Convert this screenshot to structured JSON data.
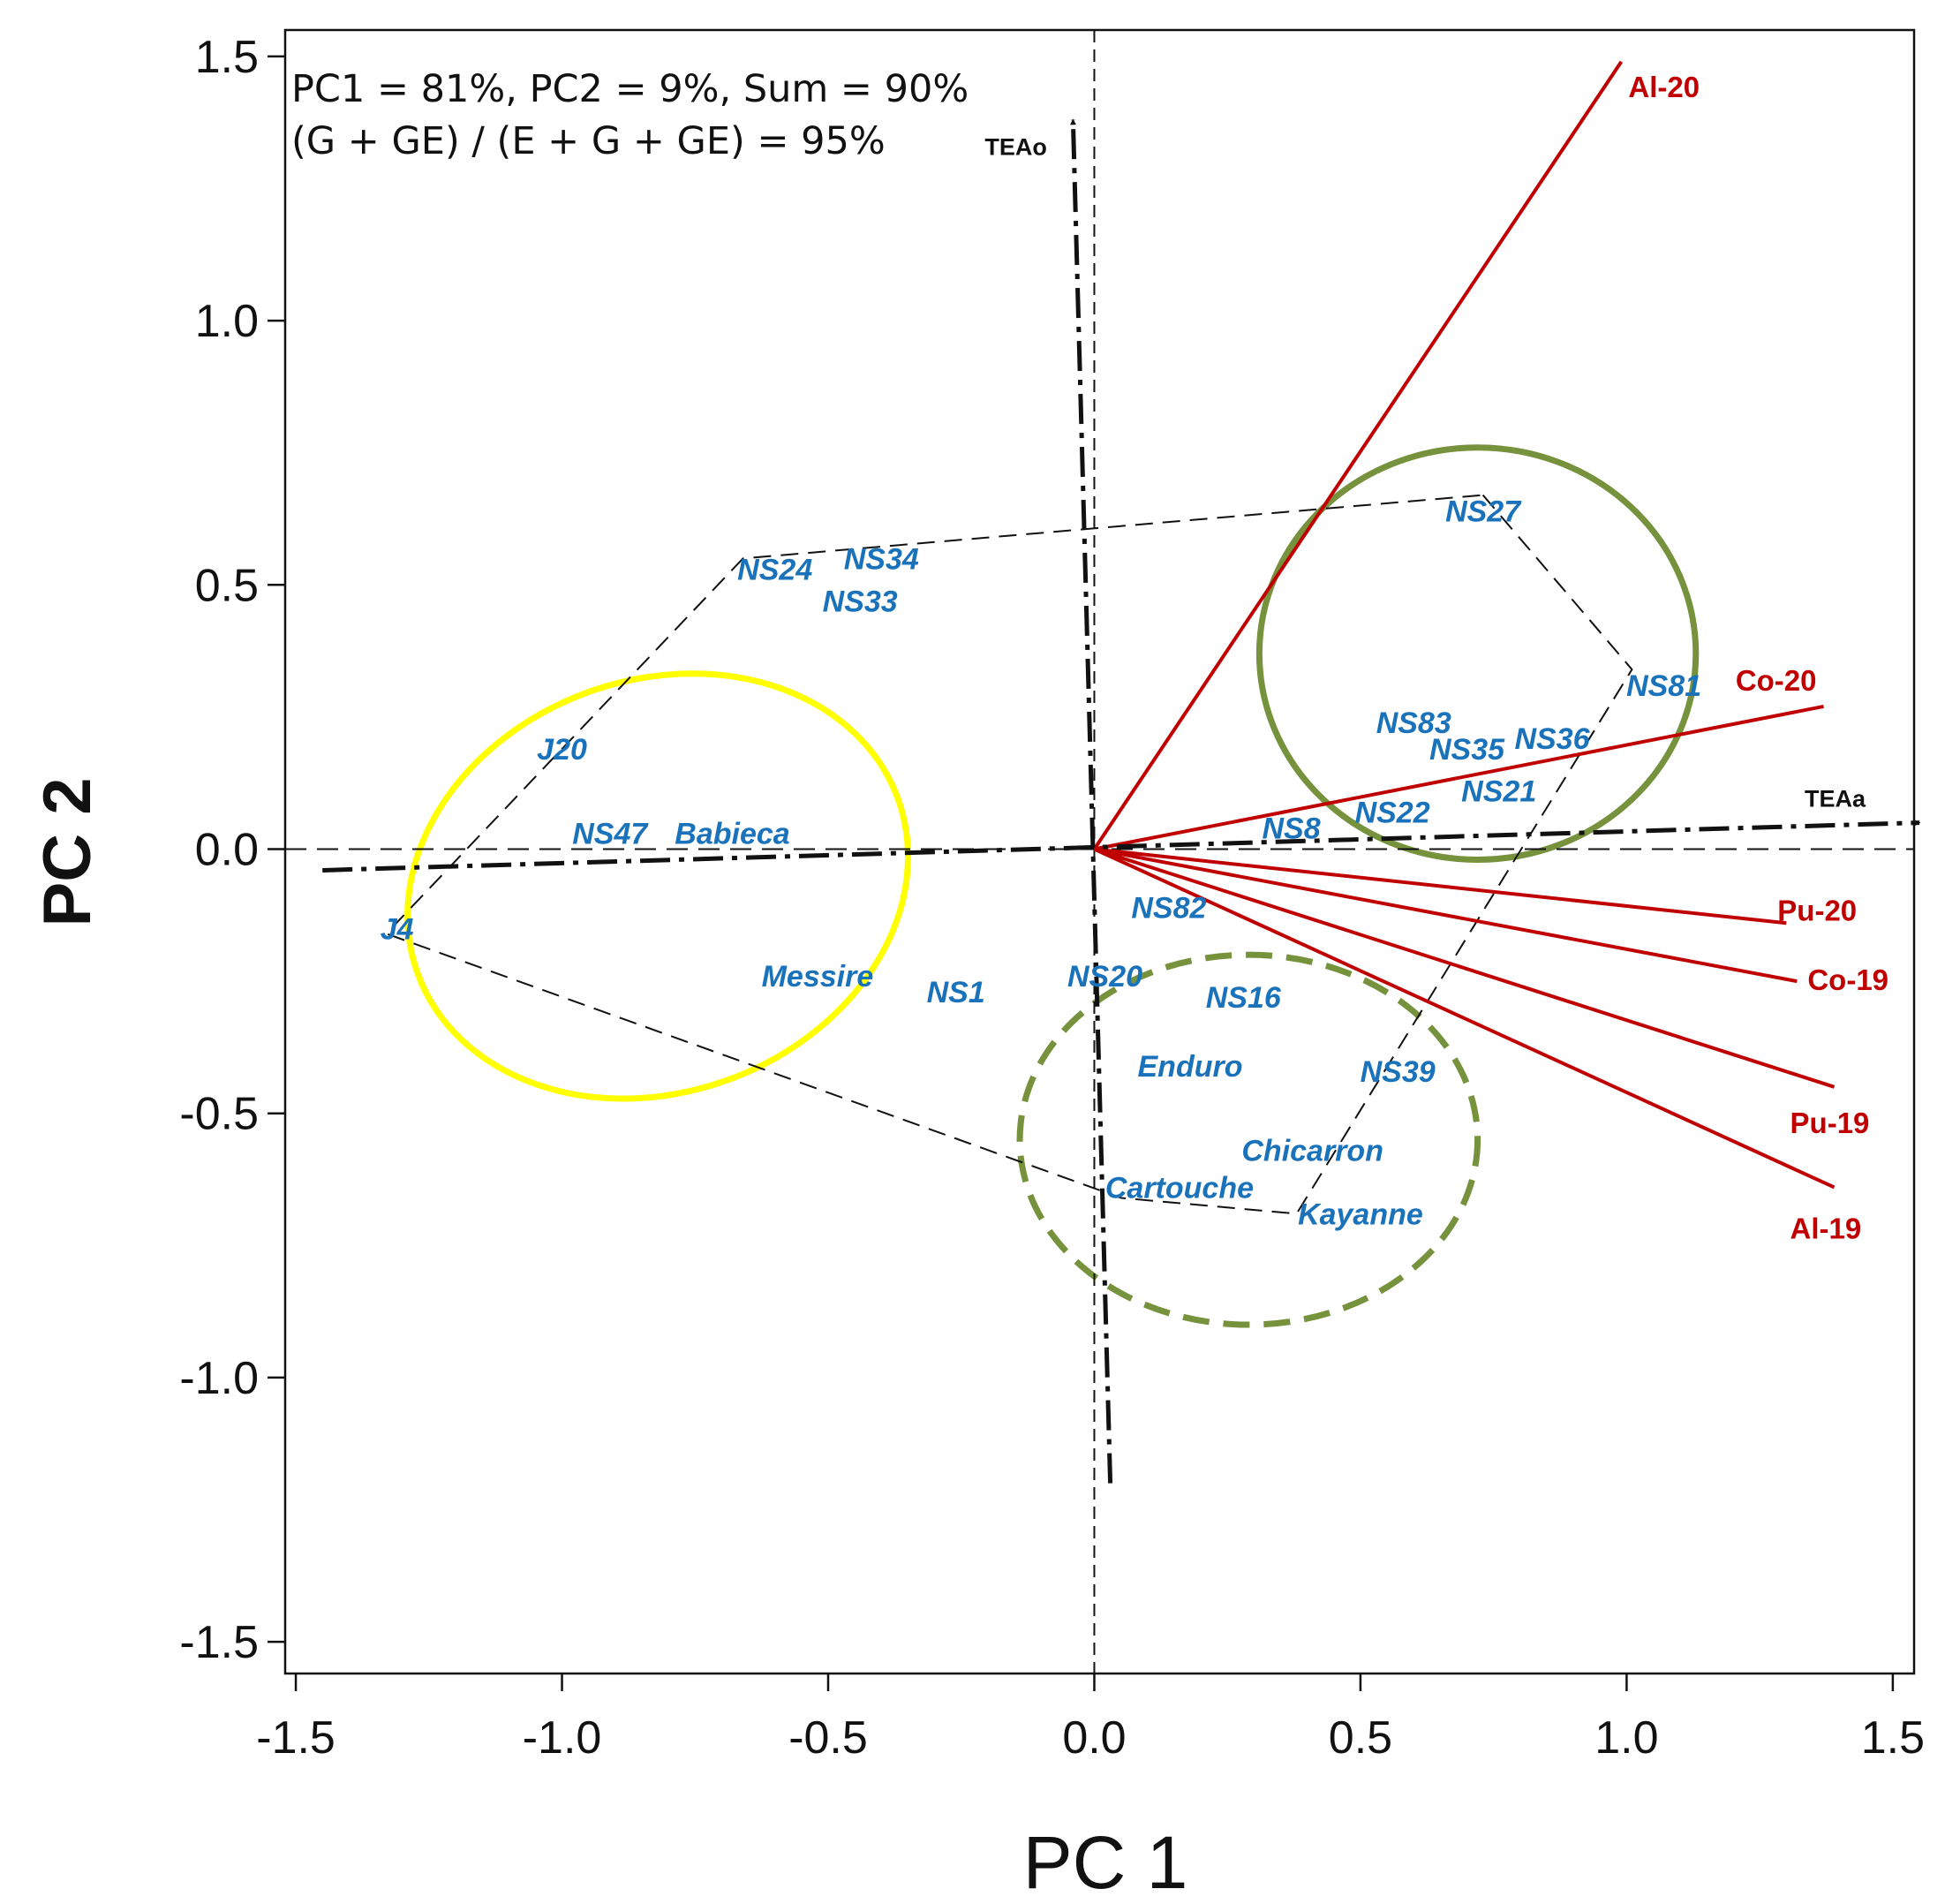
{
  "chart_data": {
    "type": "scatter",
    "subtype": "GGE biplot",
    "xlabel": "PC 1",
    "ylabel": "PC 2",
    "xlim": [
      -1.52,
      1.54
    ],
    "ylim": [
      -1.56,
      1.55
    ],
    "x_ticks": [
      -1.5,
      -1.0,
      -0.5,
      0.0,
      0.5,
      1.0,
      1.5
    ],
    "x_tick_labels": [
      "-1.5",
      "-1.0",
      "-0.5",
      "0.0",
      "0.5",
      "1.0",
      "1.5"
    ],
    "y_ticks": [
      1.5,
      1.0,
      0.5,
      0.0,
      -0.5,
      -1.0,
      -1.5
    ],
    "y_tick_labels": [
      "1.5",
      "1.0",
      "0.5",
      "0.0",
      "-0.5",
      "-1.0",
      "-1.5"
    ],
    "annotations": [
      "PC1 =  81%, PC2 = 9%, Sum = 90%",
      "(G + GE) / (E + G + GE) = 95%"
    ],
    "colors": {
      "genotype": "#1a72bb",
      "environment": "#c00000",
      "axes": "#111111",
      "yellow_ellipse": "#ffff00",
      "green_circle": "#76923c"
    },
    "genotypes": [
      {
        "name": "NS27",
        "x": 0.73,
        "y": 0.64
      },
      {
        "name": "NS24",
        "x": -0.6,
        "y": 0.53
      },
      {
        "name": "NS34",
        "x": -0.4,
        "y": 0.55
      },
      {
        "name": "NS33",
        "x": -0.44,
        "y": 0.47
      },
      {
        "name": "NS81",
        "x": 1.07,
        "y": 0.31
      },
      {
        "name": "NS83",
        "x": 0.6,
        "y": 0.24
      },
      {
        "name": "NS36",
        "x": 0.86,
        "y": 0.21
      },
      {
        "name": "NS35",
        "x": 0.7,
        "y": 0.19
      },
      {
        "name": "J20",
        "x": -1.0,
        "y": 0.19
      },
      {
        "name": "NS21",
        "x": 0.76,
        "y": 0.11
      },
      {
        "name": "NS22",
        "x": 0.56,
        "y": 0.07
      },
      {
        "name": "NS8",
        "x": 0.37,
        "y": 0.04
      },
      {
        "name": "NS47",
        "x": -0.91,
        "y": 0.03
      },
      {
        "name": "Babieca",
        "x": -0.68,
        "y": 0.03
      },
      {
        "name": "NS82",
        "x": 0.14,
        "y": -0.11
      },
      {
        "name": "J4",
        "x": -1.31,
        "y": -0.15
      },
      {
        "name": "Messire",
        "x": -0.52,
        "y": -0.24
      },
      {
        "name": "NS20",
        "x": 0.02,
        "y": -0.24
      },
      {
        "name": "NS1",
        "x": -0.26,
        "y": -0.27
      },
      {
        "name": "NS16",
        "x": 0.28,
        "y": -0.28
      },
      {
        "name": "Enduro",
        "x": 0.18,
        "y": -0.41
      },
      {
        "name": "NS39",
        "x": 0.57,
        "y": -0.42
      },
      {
        "name": "Chicarron",
        "x": 0.41,
        "y": -0.57
      },
      {
        "name": "Cartouche",
        "x": 0.16,
        "y": -0.64
      },
      {
        "name": "Kayanne",
        "x": 0.5,
        "y": -0.69
      }
    ],
    "environments": [
      {
        "name": "Al-20",
        "x": 0.99,
        "y": 1.49
      },
      {
        "name": "Co-20",
        "x": 1.37,
        "y": 0.27
      },
      {
        "name": "Pu-20",
        "x": 1.3,
        "y": -0.14
      },
      {
        "name": "Co-19",
        "x": 1.32,
        "y": -0.25
      },
      {
        "name": "Pu-19",
        "x": 1.39,
        "y": -0.45
      },
      {
        "name": "Al-19",
        "x": 1.39,
        "y": -0.64
      }
    ],
    "trait_axes": [
      {
        "name": "TEAa",
        "from": [
          -1.45,
          -0.04
        ],
        "to": [
          1.55,
          0.05
        ]
      },
      {
        "name": "TEAo",
        "from": [
          0.03,
          -1.2
        ],
        "to": [
          -0.04,
          1.38
        ]
      }
    ],
    "polygon_vertices": [
      [
        0.73,
        0.67
      ],
      [
        1.01,
        0.34
      ],
      [
        0.38,
        -0.69
      ],
      [
        0.05,
        -0.66
      ],
      [
        -1.33,
        -0.16
      ],
      [
        -0.66,
        0.55
      ]
    ],
    "ellipses": [
      {
        "name": "yellow",
        "center": [
          -0.82,
          -0.07
        ],
        "rx": 0.48,
        "ry": 0.39,
        "rotation_deg": -20,
        "style": "solid"
      },
      {
        "name": "green-solid",
        "center": [
          0.72,
          0.37
        ],
        "rx": 0.41,
        "ry": 0.39,
        "rotation_deg": 0,
        "style": "solid"
      },
      {
        "name": "green-dashed",
        "center": [
          0.29,
          -0.55
        ],
        "rx": 0.43,
        "ry": 0.35,
        "rotation_deg": 0,
        "style": "dashed"
      }
    ]
  }
}
